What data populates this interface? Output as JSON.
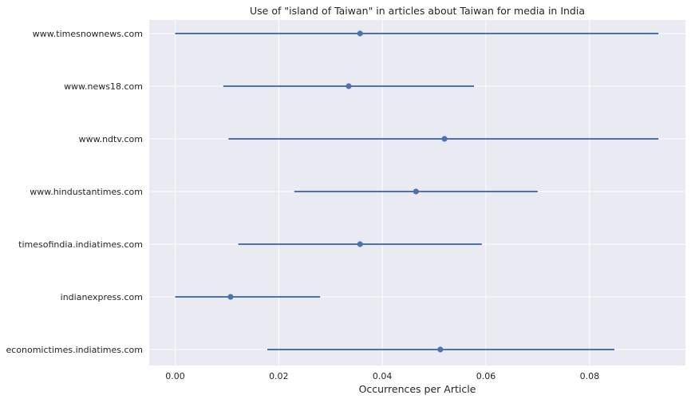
{
  "chart_data": {
    "type": "pointrange",
    "title": "Use of \"island of Taiwan\" in articles about Taiwan for media in India",
    "xlabel": "Occurrences per Article",
    "ylabel": "",
    "xlim": [
      -0.005,
      0.0985
    ],
    "grid": true,
    "categories": [
      "www.timesnownews.com",
      "www.news18.com",
      "www.ndtv.com",
      "www.hindustantimes.com",
      "timesofindia.indiatimes.com",
      "indianexpress.com",
      "economictimes.indiatimes.com"
    ],
    "points": [
      0.0357,
      0.0335,
      0.052,
      0.0465,
      0.0357,
      0.0107,
      0.0512
    ],
    "lower": [
      0.0,
      0.0093,
      0.0103,
      0.023,
      0.0122,
      0.0,
      0.0178
    ],
    "upper": [
      0.0933,
      0.0577,
      0.0933,
      0.07,
      0.0592,
      0.028,
      0.0848
    ],
    "x_ticks": [
      0.0,
      0.02,
      0.04,
      0.06,
      0.08
    ],
    "x_tick_labels": [
      "0.00",
      "0.02",
      "0.04",
      "0.06",
      "0.08"
    ],
    "colors": {
      "background": "#eaeaf2",
      "grid": "#ffffff",
      "series": "#4c72b0",
      "text": "#262626"
    }
  }
}
